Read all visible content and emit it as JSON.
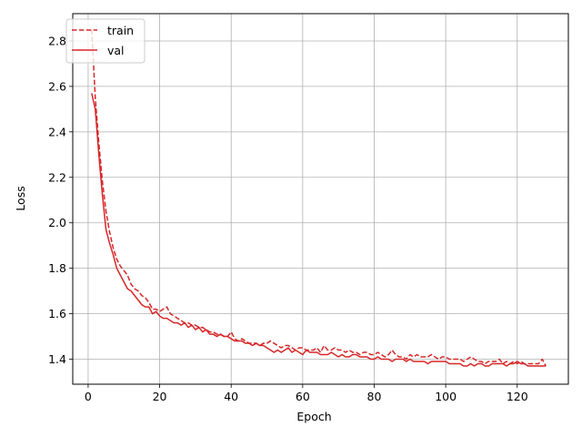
{
  "chart_data": {
    "type": "line",
    "title": "",
    "xlabel": "Epoch",
    "ylabel": "Loss",
    "xlim": [
      -4.3,
      134.3
    ],
    "ylim": [
      1.29,
      2.92
    ],
    "xticks": [
      0,
      20,
      40,
      60,
      80,
      100,
      120
    ],
    "yticks": [
      1.4,
      1.6,
      1.8,
      2.0,
      2.2,
      2.4,
      2.6,
      2.8
    ],
    "grid": true,
    "legend_position": "top-left",
    "series": [
      {
        "name": "train",
        "color": "#d62728",
        "linestyle": "dashed",
        "x": [
          1,
          2,
          3,
          4,
          5,
          6,
          7,
          8,
          9,
          10,
          11,
          12,
          13,
          14,
          15,
          16,
          17,
          18,
          19,
          20,
          21,
          22,
          23,
          24,
          25,
          26,
          27,
          28,
          29,
          30,
          31,
          32,
          33,
          34,
          35,
          36,
          37,
          38,
          39,
          40,
          41,
          42,
          43,
          44,
          45,
          46,
          47,
          48,
          49,
          50,
          51,
          52,
          53,
          54,
          55,
          56,
          57,
          58,
          59,
          60,
          61,
          62,
          63,
          64,
          65,
          66,
          67,
          68,
          69,
          70,
          71,
          72,
          73,
          74,
          75,
          76,
          77,
          78,
          79,
          80,
          81,
          82,
          83,
          84,
          85,
          86,
          87,
          88,
          89,
          90,
          91,
          92,
          93,
          94,
          95,
          96,
          97,
          98,
          99,
          100,
          101,
          102,
          103,
          104,
          105,
          106,
          107,
          108,
          109,
          110,
          111,
          112,
          113,
          114,
          115,
          116,
          117,
          118,
          119,
          120,
          121,
          122,
          123,
          124,
          125,
          126,
          127,
          128
        ],
        "y": [
          2.85,
          2.55,
          2.35,
          2.18,
          2.05,
          1.96,
          1.89,
          1.84,
          1.81,
          1.79,
          1.77,
          1.73,
          1.71,
          1.7,
          1.68,
          1.67,
          1.65,
          1.62,
          1.62,
          1.61,
          1.62,
          1.63,
          1.6,
          1.59,
          1.58,
          1.57,
          1.56,
          1.56,
          1.55,
          1.55,
          1.54,
          1.54,
          1.53,
          1.52,
          1.52,
          1.51,
          1.51,
          1.5,
          1.5,
          1.52,
          1.49,
          1.48,
          1.49,
          1.48,
          1.47,
          1.47,
          1.47,
          1.46,
          1.47,
          1.47,
          1.48,
          1.47,
          1.46,
          1.45,
          1.46,
          1.46,
          1.45,
          1.44,
          1.45,
          1.45,
          1.44,
          1.44,
          1.44,
          1.45,
          1.43,
          1.46,
          1.44,
          1.44,
          1.45,
          1.44,
          1.44,
          1.43,
          1.44,
          1.43,
          1.43,
          1.42,
          1.43,
          1.43,
          1.42,
          1.42,
          1.43,
          1.42,
          1.41,
          1.42,
          1.44,
          1.42,
          1.41,
          1.41,
          1.4,
          1.42,
          1.41,
          1.42,
          1.41,
          1.41,
          1.41,
          1.42,
          1.41,
          1.4,
          1.41,
          1.41,
          1.4,
          1.4,
          1.4,
          1.4,
          1.39,
          1.4,
          1.41,
          1.4,
          1.39,
          1.39,
          1.38,
          1.39,
          1.39,
          1.39,
          1.4,
          1.38,
          1.39,
          1.38,
          1.39,
          1.38,
          1.39,
          1.38,
          1.38,
          1.38,
          1.38,
          1.38,
          1.4,
          1.37
        ]
      },
      {
        "name": "val",
        "color": "#d62728",
        "linestyle": "solid",
        "x": [
          1,
          2,
          3,
          4,
          5,
          6,
          7,
          8,
          9,
          10,
          11,
          12,
          13,
          14,
          15,
          16,
          17,
          18,
          19,
          20,
          21,
          22,
          23,
          24,
          25,
          26,
          27,
          28,
          29,
          30,
          31,
          32,
          33,
          34,
          35,
          36,
          37,
          38,
          39,
          40,
          41,
          42,
          43,
          44,
          45,
          46,
          47,
          48,
          49,
          50,
          51,
          52,
          53,
          54,
          55,
          56,
          57,
          58,
          59,
          60,
          61,
          62,
          63,
          64,
          65,
          66,
          67,
          68,
          69,
          70,
          71,
          72,
          73,
          74,
          75,
          76,
          77,
          78,
          79,
          80,
          81,
          82,
          83,
          84,
          85,
          86,
          87,
          88,
          89,
          90,
          91,
          92,
          93,
          94,
          95,
          96,
          97,
          98,
          99,
          100,
          101,
          102,
          103,
          104,
          105,
          106,
          107,
          108,
          109,
          110,
          111,
          112,
          113,
          114,
          115,
          116,
          117,
          118,
          119,
          120,
          121,
          122,
          123,
          124,
          125,
          126,
          127,
          128
        ],
        "y": [
          2.57,
          2.5,
          2.3,
          2.12,
          1.97,
          1.91,
          1.86,
          1.8,
          1.77,
          1.74,
          1.71,
          1.7,
          1.68,
          1.66,
          1.64,
          1.63,
          1.63,
          1.6,
          1.61,
          1.59,
          1.58,
          1.58,
          1.57,
          1.56,
          1.56,
          1.55,
          1.56,
          1.54,
          1.55,
          1.53,
          1.54,
          1.52,
          1.53,
          1.51,
          1.51,
          1.5,
          1.51,
          1.5,
          1.5,
          1.49,
          1.48,
          1.48,
          1.48,
          1.47,
          1.47,
          1.46,
          1.47,
          1.46,
          1.46,
          1.45,
          1.44,
          1.43,
          1.44,
          1.43,
          1.44,
          1.45,
          1.43,
          1.44,
          1.43,
          1.42,
          1.44,
          1.43,
          1.43,
          1.43,
          1.42,
          1.42,
          1.42,
          1.43,
          1.42,
          1.41,
          1.42,
          1.41,
          1.41,
          1.42,
          1.42,
          1.41,
          1.41,
          1.41,
          1.4,
          1.4,
          1.41,
          1.4,
          1.4,
          1.4,
          1.39,
          1.4,
          1.4,
          1.4,
          1.39,
          1.4,
          1.39,
          1.39,
          1.39,
          1.39,
          1.38,
          1.39,
          1.39,
          1.39,
          1.39,
          1.39,
          1.38,
          1.38,
          1.38,
          1.38,
          1.37,
          1.37,
          1.38,
          1.37,
          1.38,
          1.38,
          1.37,
          1.37,
          1.38,
          1.38,
          1.38,
          1.38,
          1.37,
          1.38,
          1.38,
          1.39,
          1.38,
          1.38,
          1.37,
          1.37,
          1.37,
          1.37,
          1.37,
          1.37
        ]
      }
    ]
  }
}
